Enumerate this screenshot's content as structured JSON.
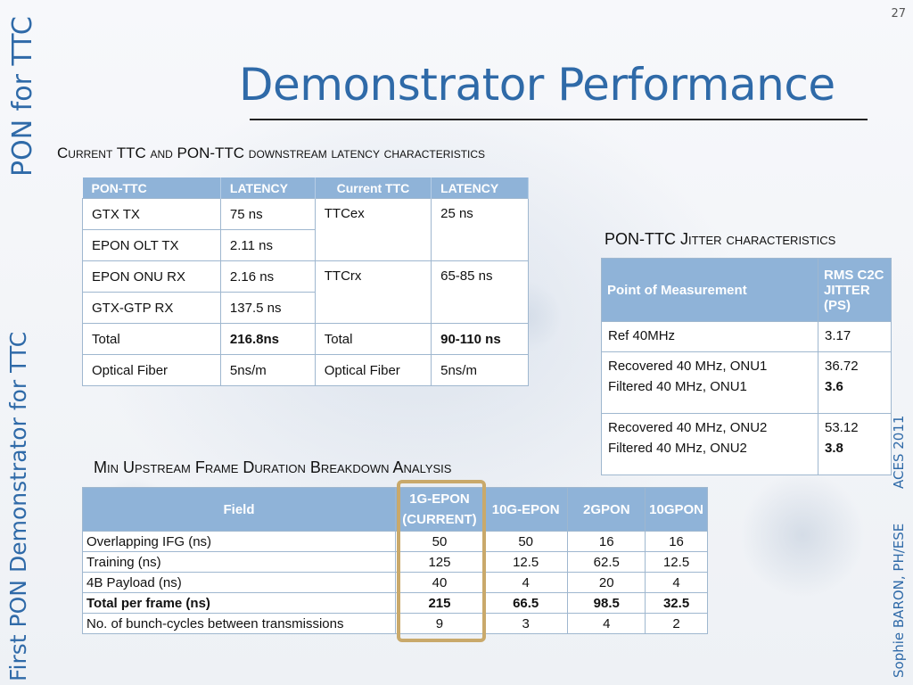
{
  "slide": {
    "page_number": "27",
    "title": "Demonstrator Performance",
    "side_left_top": "PON for TTC",
    "side_left_bottom": "First PON Demonstrator for TTC",
    "side_right_top": "ACES 2011",
    "side_right_bottom": "Sophie BARON, PH/ESE"
  },
  "latency": {
    "heading": "Current TTC and PON-TTC downstream latency characteristics",
    "headers": [
      "PON-TTC",
      "LATENCY",
      "Current TTC",
      "LATENCY"
    ],
    "rows": [
      {
        "pon": "GTX TX",
        "pon_lat": "75 ns",
        "cur": "TTCex",
        "cur_lat": "25 ns"
      },
      {
        "pon": "EPON OLT TX",
        "pon_lat": "2.11 ns"
      },
      {
        "pon": "EPON ONU RX",
        "pon_lat": "2.16 ns",
        "cur": "TTCrx",
        "cur_lat": "65-85 ns"
      },
      {
        "pon": "GTX-GTP RX",
        "pon_lat": "137.5 ns"
      },
      {
        "pon": "Total",
        "pon_lat": "216.8ns",
        "cur": "Total",
        "cur_lat": "90-110 ns"
      },
      {
        "pon": "Optical Fiber",
        "pon_lat": "5ns/m",
        "cur": "Optical Fiber",
        "cur_lat": "5ns/m"
      }
    ]
  },
  "jitter": {
    "heading": "PON-TTC Jitter characteristics",
    "headers": [
      "Point of Measurement",
      "RMS C2C JITTER (PS)"
    ],
    "rows": [
      {
        "point": "Ref 40MHz",
        "value": "3.17"
      },
      {
        "point": "Recovered 40 MHz, ONU1",
        "point2": "Filtered 40 MHz, ONU1",
        "value": "36.72",
        "value2": "3.6"
      },
      {
        "point": "Recovered 40 MHz, ONU2",
        "point2": "Filtered 40 MHz, ONU2",
        "value": "53.12",
        "value2": "3.8"
      }
    ]
  },
  "upstream": {
    "heading": "Min Upstream Frame Duration Breakdown Analysis",
    "headers": [
      "Field",
      "1G-EPON (CURRENT)",
      "10G-EPON",
      "2GPON",
      "10GPON"
    ],
    "rows": [
      {
        "field": "Overlapping IFG (ns)",
        "v": [
          "50",
          "50",
          "16",
          "16"
        ]
      },
      {
        "field": "Training (ns)",
        "v": [
          "125",
          "12.5",
          "62.5",
          "12.5"
        ]
      },
      {
        "field": "4B Payload (ns)",
        "v": [
          "40",
          "4",
          "20",
          "4"
        ]
      },
      {
        "field": "Total per frame (ns)",
        "v": [
          "215",
          "66.5",
          "98.5",
          "32.5"
        ]
      },
      {
        "field": "No. of bunch-cycles between transmissions",
        "v": [
          "9",
          "3",
          "4",
          "2"
        ]
      }
    ]
  }
}
